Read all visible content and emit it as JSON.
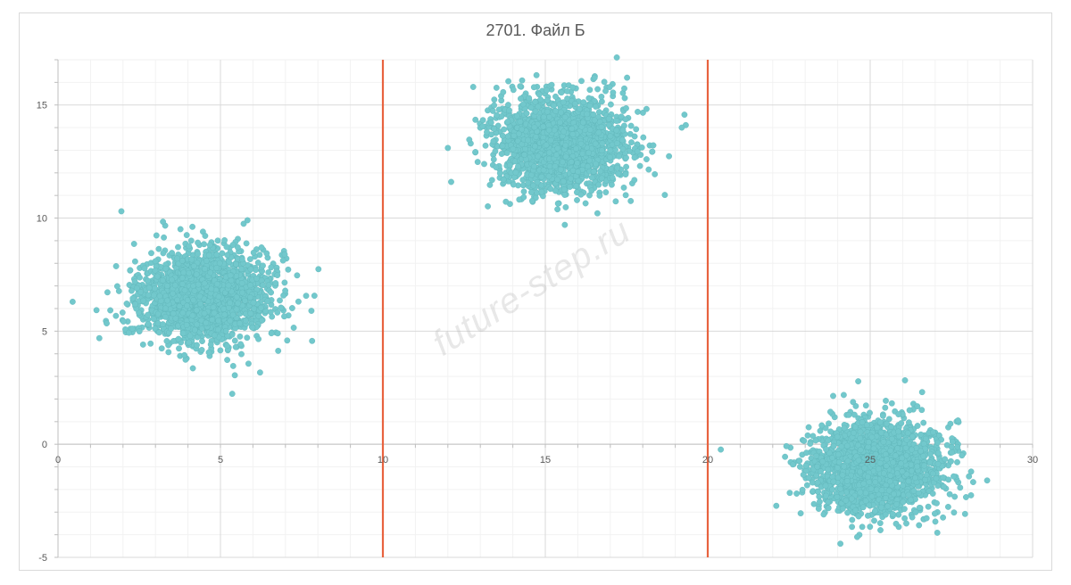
{
  "chart_data": {
    "type": "scatter",
    "title": "2701. Файл Б",
    "xlim": [
      0,
      30
    ],
    "ylim": [
      -5,
      17
    ],
    "x_ticks": [
      0,
      5,
      10,
      15,
      20,
      25,
      30
    ],
    "y_ticks": [
      -5,
      0,
      5,
      10,
      15
    ],
    "x_tick_labels": [
      "0",
      "5",
      "10",
      "15",
      "20",
      "25",
      "30"
    ],
    "y_tick_labels": [
      "-5",
      "0",
      "5",
      "10",
      "15"
    ],
    "grid": true,
    "point_color": "#72c8cc",
    "divider_color": "#e8633f",
    "vertical_lines_x": [
      10,
      20
    ],
    "clusters": [
      {
        "center_x": 4.5,
        "center_y": 6.5,
        "spread_x": 1.0,
        "spread_y": 1.0,
        "count": 2000
      },
      {
        "center_x": 15.5,
        "center_y": 13.3,
        "spread_x": 1.0,
        "spread_y": 1.0,
        "count": 2000
      },
      {
        "center_x": 25.2,
        "center_y": -1.0,
        "spread_x": 1.0,
        "spread_y": 1.0,
        "count": 2000
      }
    ],
    "outliers": [
      {
        "x": 0.45,
        "y": 6.3
      },
      {
        "x": 1.95,
        "y": 10.3
      },
      {
        "x": 7.8,
        "y": 5.9
      },
      {
        "x": 12.0,
        "y": 13.1
      },
      {
        "x": 17.2,
        "y": 17.1
      },
      {
        "x": 15.6,
        "y": 9.7
      },
      {
        "x": 19.2,
        "y": 14.0
      },
      {
        "x": 28.6,
        "y": -1.6
      },
      {
        "x": 24.6,
        "y": -4.1
      }
    ]
  },
  "watermark": "future-step.ru"
}
